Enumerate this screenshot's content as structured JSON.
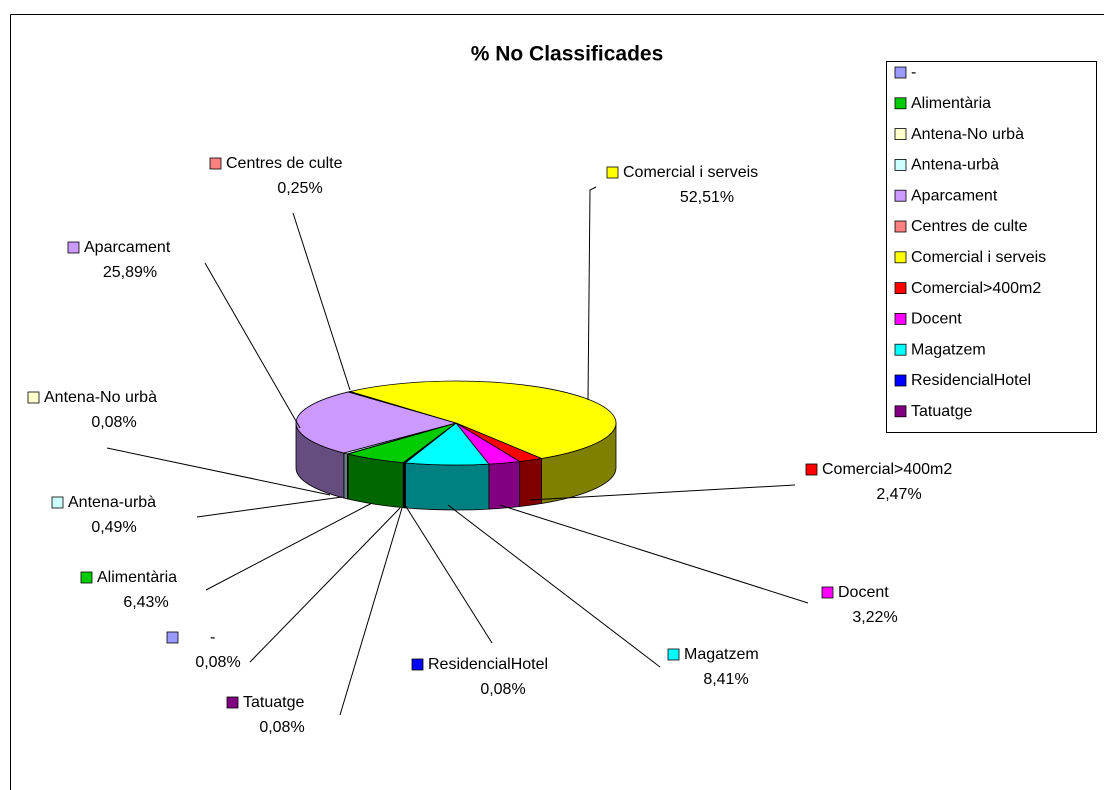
{
  "chart_data": {
    "type": "pie",
    "title": "% No Classificades",
    "categories": [
      "-",
      "Alimentària",
      "Antena-No urbà",
      "Antena-urbà",
      "Aparcament",
      "Centres de culte",
      "Comercial i serveis",
      "Comercial>400m2",
      "Docent",
      "Magatzem",
      "ResidencialHotel",
      "Tatuatge"
    ],
    "values": [
      0.08,
      6.43,
      0.08,
      0.49,
      25.89,
      0.25,
      52.51,
      2.47,
      3.22,
      8.41,
      0.08,
      0.08
    ],
    "value_labels": [
      "0,08%",
      "6,43%",
      "0,08%",
      "0,49%",
      "25,89%",
      "0,25%",
      "52,51%",
      "2,47%",
      "3,22%",
      "8,41%",
      "0,08%",
      "0,08%"
    ],
    "colors": [
      "#9999ff",
      "#00cc00",
      "#ffffcc",
      "#ccffff",
      "#cc99ff",
      "#ff8080",
      "#ffff00",
      "#ff0000",
      "#ff00ff",
      "#00ffff",
      "#0000ff",
      "#800080"
    ],
    "legend": "right"
  }
}
